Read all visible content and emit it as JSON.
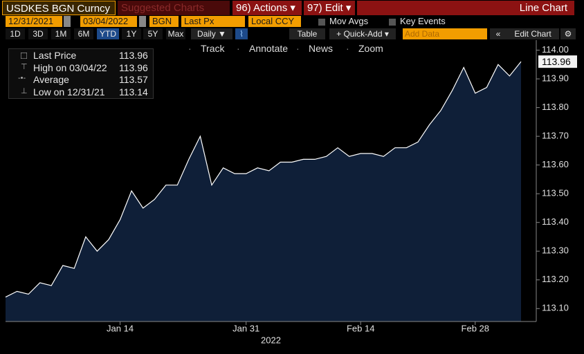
{
  "toolbar": {
    "security": "USDKES BGN Curncy",
    "suggested": "Suggested Charts",
    "actions": "96) Actions",
    "edit": "97) Edit",
    "chart_kind": "Line Chart",
    "start_date": "12/31/2021",
    "end_date": "03/04/2022",
    "source": "BGN",
    "field": "Last Px",
    "currency": "Local CCY",
    "mov_avgs": "Mov Avgs",
    "key_events": "Key Events",
    "periods": [
      "1D",
      "3D",
      "1M",
      "6M",
      "YTD",
      "1Y",
      "5Y",
      "Max"
    ],
    "frequency": "Daily",
    "table": "Table",
    "quick_add": "+ Quick-Add",
    "add_data": "Add Data",
    "edit_chart": "Edit Chart",
    "tools": [
      "Track",
      "Annotate",
      "News",
      "Zoom"
    ]
  },
  "legend": {
    "rows": [
      {
        "label": "Last Price",
        "value": 113.96
      },
      {
        "label": "High on 03/04/22",
        "value": 113.96
      },
      {
        "label": "Average",
        "value": 113.57
      },
      {
        "label": "Low on 12/31/21",
        "value": 113.14
      }
    ]
  },
  "chart_data": {
    "type": "area",
    "xlabel": "2022",
    "x": [
      "2021-12-31",
      "2022-01-03",
      "2022-01-04",
      "2022-01-05",
      "2022-01-06",
      "2022-01-07",
      "2022-01-10",
      "2022-01-11",
      "2022-01-12",
      "2022-01-13",
      "2022-01-14",
      "2022-01-17",
      "2022-01-18",
      "2022-01-19",
      "2022-01-20",
      "2022-01-21",
      "2022-01-24",
      "2022-01-25",
      "2022-01-26",
      "2022-01-27",
      "2022-01-28",
      "2022-01-31",
      "2022-02-01",
      "2022-02-02",
      "2022-02-03",
      "2022-02-04",
      "2022-02-07",
      "2022-02-08",
      "2022-02-09",
      "2022-02-10",
      "2022-02-11",
      "2022-02-14",
      "2022-02-15",
      "2022-02-16",
      "2022-02-17",
      "2022-02-18",
      "2022-02-21",
      "2022-02-22",
      "2022-02-23",
      "2022-02-24",
      "2022-02-25",
      "2022-02-28",
      "2022-03-01",
      "2022-03-02",
      "2022-03-03",
      "2022-03-04"
    ],
    "series": [
      {
        "name": "Last Price",
        "color": "#ffffff",
        "fill": "#0f1f38",
        "values": [
          113.14,
          113.16,
          113.15,
          113.19,
          113.18,
          113.25,
          113.24,
          113.35,
          113.3,
          113.34,
          113.41,
          113.51,
          113.45,
          113.48,
          113.53,
          113.53,
          113.62,
          113.7,
          113.53,
          113.59,
          113.57,
          113.57,
          113.59,
          113.58,
          113.61,
          113.61,
          113.62,
          113.62,
          113.63,
          113.66,
          113.63,
          113.64,
          113.64,
          113.63,
          113.66,
          113.66,
          113.68,
          113.74,
          113.79,
          113.86,
          113.94,
          113.85,
          113.87,
          113.95,
          113.91,
          113.96
        ]
      }
    ],
    "xticks": [
      {
        "value": "2022-01-14",
        "label": "Jan 14"
      },
      {
        "value": "2022-01-31",
        "label": "Jan 31"
      },
      {
        "value": "2022-02-14",
        "label": "Feb 14"
      },
      {
        "value": "2022-02-28",
        "label": "Feb 28"
      }
    ],
    "ylim": [
      113.055,
      114.035
    ],
    "yticks": [
      {
        "value": 113.1,
        "label": "113.10"
      },
      {
        "value": 113.2,
        "label": "113.20"
      },
      {
        "value": 113.3,
        "label": "113.30"
      },
      {
        "value": 113.4,
        "label": "113.40"
      },
      {
        "value": 113.5,
        "label": "113.50"
      },
      {
        "value": 113.6,
        "label": "113.60"
      },
      {
        "value": 113.7,
        "label": "113.70"
      },
      {
        "value": 113.8,
        "label": "113.80"
      },
      {
        "value": 113.9,
        "label": "113.90"
      },
      {
        "value": 114,
        "label": "114.00"
      }
    ],
    "grid": false
  }
}
